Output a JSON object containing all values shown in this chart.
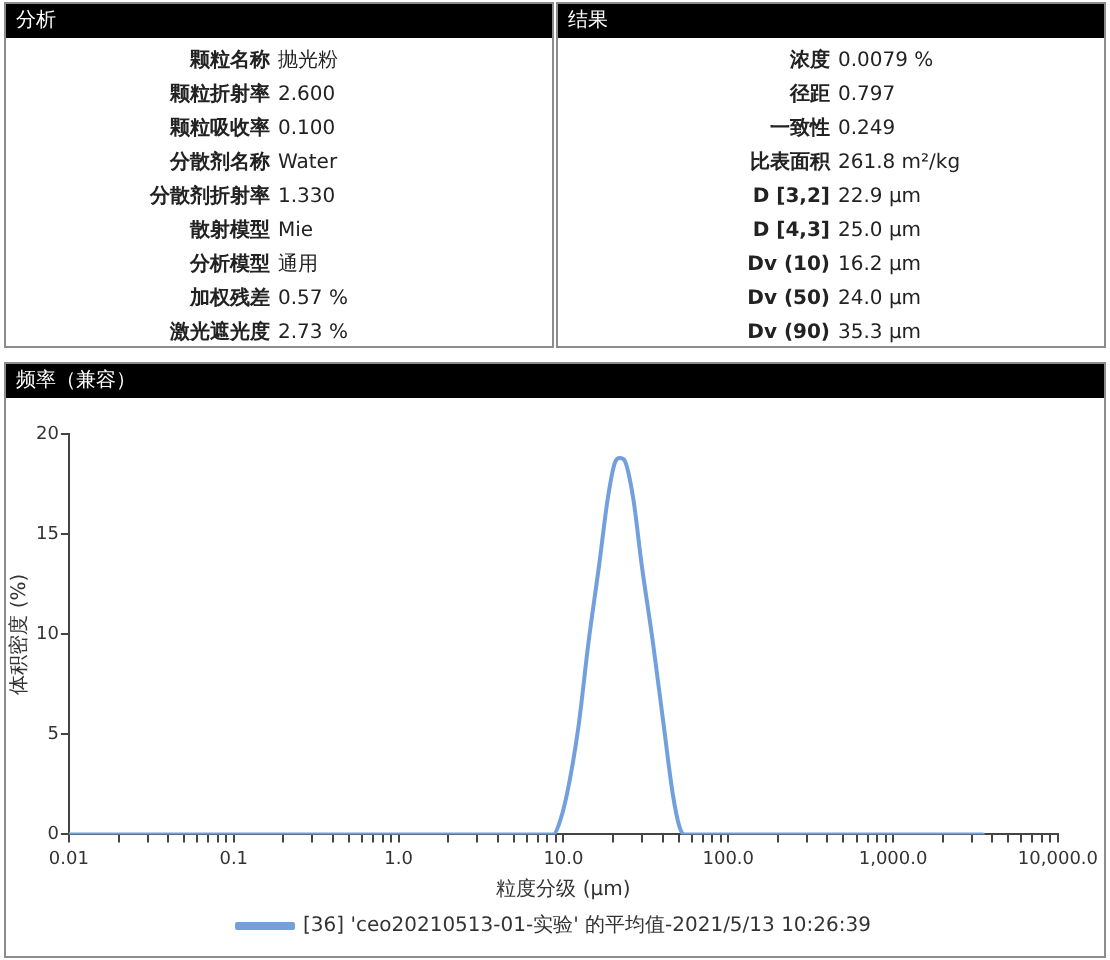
{
  "chart_data": [
    {
      "type": "other",
      "title": "分析",
      "annotations": [
        "颗粒名称",
        "抛光粉",
        "颗粒折射率",
        "2.600",
        "颗粒吸收率",
        "0.100",
        "分散剂名称",
        "Water",
        "分散剂折射率",
        "1.330",
        "散射模型",
        "Mie",
        "分析模型",
        "通用",
        "加权残差",
        "0.57 %",
        "激光遮光度",
        "2.73 %"
      ]
    },
    {
      "type": "other",
      "title": "结果",
      "annotations": [
        "浓度",
        "0.0079 %",
        "径距",
        "0.797",
        "一致性",
        "0.249",
        "比表面积",
        "261.8 m²/kg",
        "D [3,2]",
        "22.9 μm",
        "D [4,3]",
        "25.0 μm",
        "Dv (10)",
        "16.2 μm",
        "Dv (50)",
        "24.0 μm",
        "Dv (90)",
        "35.3 μm"
      ]
    },
    {
      "type": "line",
      "title": "频率（兼容）",
      "xlabel": "粒度分级 (μm)",
      "ylabel": "体积密度 (%)",
      "log": "x",
      "marker": "none",
      "legend": "bottom",
      "x": [
        0.01,
        8.7,
        9.3,
        10.5,
        12.3,
        14.2,
        16.5,
        18.6,
        20.6,
        22.0,
        23.4,
        26.5,
        29.8,
        34.9,
        40.8,
        46.1,
        50.5,
        53.8,
        3500
      ],
      "series": [
        {
          "name": "[36] 'ceo20210513-01-实验' 的平均值-2021/5/13 10:26:39",
          "color": "#72a0dc",
          "values": [
            0,
            0,
            0.4,
            2.0,
            5.3,
            9.6,
            13.5,
            16.8,
            18.6,
            18.8,
            18.7,
            16.8,
            13.5,
            9.6,
            5.3,
            2.0,
            0.4,
            0,
            0
          ]
        }
      ],
      "xlim": [
        0.01,
        10000
      ],
      "xticks": [
        0.01,
        {
          "value": 0.02,
          "label": null
        },
        {
          "value": 0.03,
          "label": null
        },
        {
          "value": 0.04,
          "label": null
        },
        {
          "value": 0.05,
          "label": null
        },
        {
          "value": 0.06,
          "label": null
        },
        {
          "value": 0.07,
          "label": null
        },
        {
          "value": 0.08,
          "label": null
        },
        {
          "value": 0.09,
          "label": null
        },
        0.1,
        {
          "value": 0.2,
          "label": null
        },
        {
          "value": 0.3,
          "label": null
        },
        {
          "value": 0.4,
          "label": null
        },
        {
          "value": 0.5,
          "label": null
        },
        {
          "value": 0.6,
          "label": null
        },
        {
          "value": 0.7,
          "label": null
        },
        {
          "value": 0.8,
          "label": null
        },
        {
          "value": 0.9,
          "label": null
        },
        {
          "value": 1,
          "label": "1.0"
        },
        {
          "value": 2,
          "label": null
        },
        {
          "value": 3,
          "label": null
        },
        {
          "value": 4,
          "label": null
        },
        {
          "value": 5,
          "label": null
        },
        {
          "value": 6,
          "label": null
        },
        {
          "value": 7,
          "label": null
        },
        {
          "value": 8,
          "label": null
        },
        {
          "value": 9,
          "label": null
        },
        {
          "value": 10,
          "label": "10.0"
        },
        {
          "value": 20,
          "label": null
        },
        {
          "value": 30,
          "label": null
        },
        {
          "value": 40,
          "label": null
        },
        {
          "value": 50,
          "label": null
        },
        {
          "value": 60,
          "label": null
        },
        {
          "value": 70,
          "label": null
        },
        {
          "value": 80,
          "label": null
        },
        {
          "value": 90,
          "label": null
        },
        {
          "value": 100,
          "label": "100.0"
        },
        {
          "value": 200,
          "label": null
        },
        {
          "value": 300,
          "label": null
        },
        {
          "value": 400,
          "label": null
        },
        {
          "value": 500,
          "label": null
        },
        {
          "value": 600,
          "label": null
        },
        {
          "value": 700,
          "label": null
        },
        {
          "value": 800,
          "label": null
        },
        {
          "value": 900,
          "label": null
        },
        {
          "value": 1000,
          "label": "1,000.0"
        },
        {
          "value": 2000,
          "label": null
        },
        {
          "value": 3000,
          "label": null
        },
        {
          "value": 4000,
          "label": null
        },
        {
          "value": 5000,
          "label": null
        },
        {
          "value": 6000,
          "label": null
        },
        {
          "value": 7000,
          "label": null
        },
        {
          "value": 8000,
          "label": null
        },
        {
          "value": 9000,
          "label": null
        },
        {
          "value": 10000,
          "label": "10,000.0"
        }
      ],
      "ylim": [
        0,
        20
      ],
      "yticks": [
        0,
        5,
        10,
        15,
        20
      ]
    }
  ]
}
